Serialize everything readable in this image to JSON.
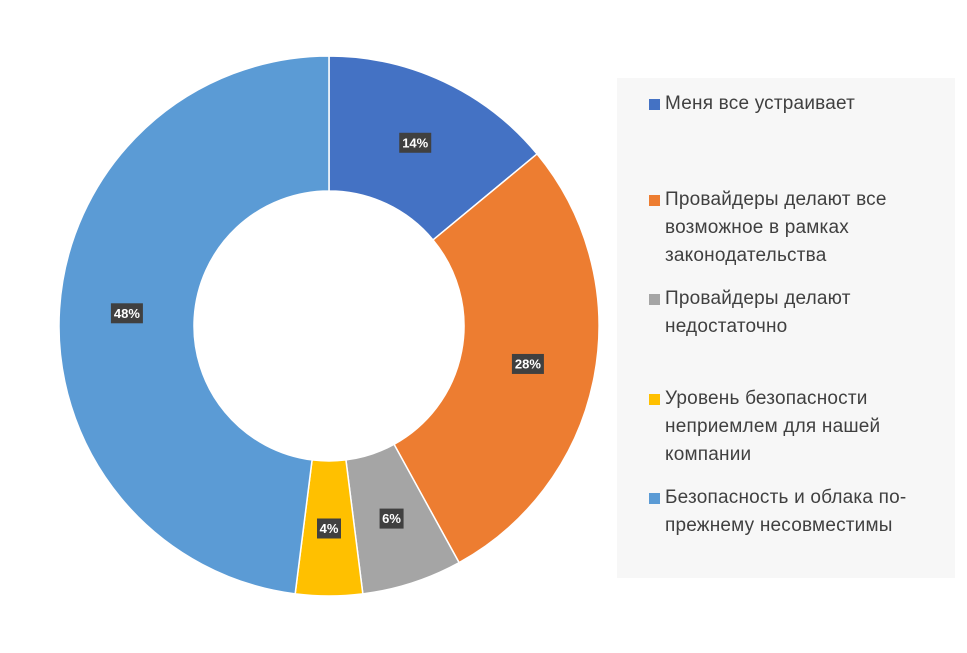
{
  "chart_data": {
    "type": "pie",
    "variant": "donut",
    "title": "",
    "categories": [
      "Меня все устраивает",
      "Провайдеры делают все возможное в рамках законодательства",
      "Провайдеры делают недостаточно",
      "Уровень безопасности неприемлем для нашей компании",
      "Безопасность и облака по-прежнему несовместимы"
    ],
    "values": [
      14,
      28,
      6,
      4,
      48
    ],
    "labels": [
      "14%",
      "28%",
      "6%",
      "4%",
      "48%"
    ],
    "colors": [
      "#4472c4",
      "#ed7d31",
      "#a5a5a5",
      "#ffc000",
      "#5b9bd5"
    ],
    "legend_position": "right"
  },
  "legend": {
    "items": [
      {
        "lines": [
          "Меня все устраивает"
        ],
        "color": "#4472c4"
      },
      {
        "lines": [
          "Провайдеры делают все",
          "возможное в рамках",
          "законодательства"
        ],
        "color": "#ed7d31"
      },
      {
        "lines": [
          "Провайдеры делают",
          "недостаточно"
        ],
        "color": "#a5a5a5"
      },
      {
        "lines": [
          "Уровень безопасности",
          "неприемлем для нашей",
          "компании"
        ],
        "color": "#ffc000"
      },
      {
        "lines": [
          "Безопасность и облака по-",
          "прежнему несовместимы"
        ],
        "color": "#5b9bd5"
      }
    ]
  }
}
